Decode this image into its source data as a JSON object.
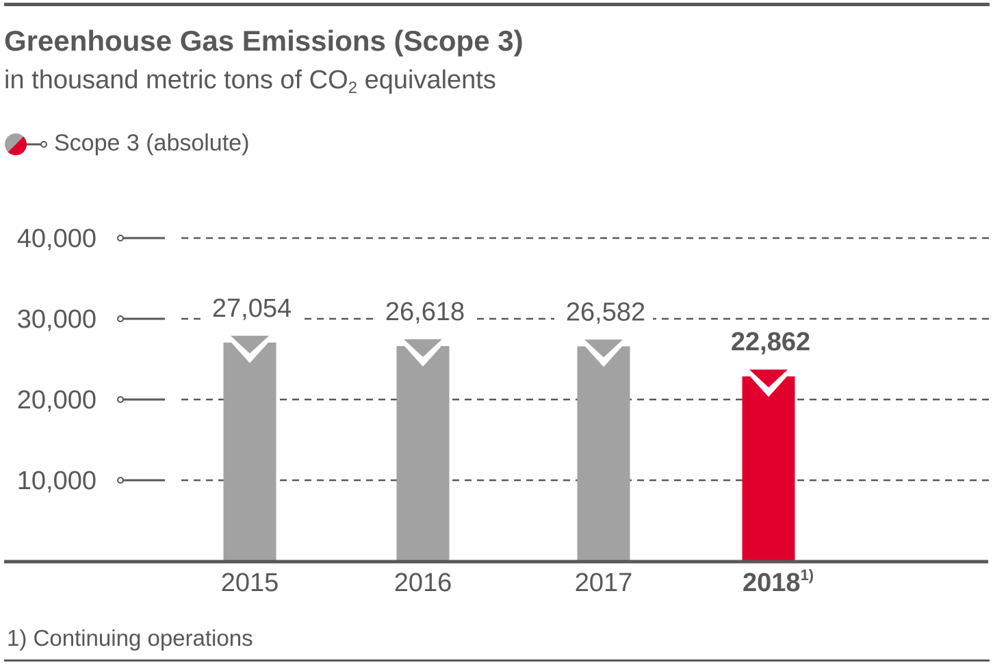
{
  "title": "Greenhouse Gas Emissions (Scope 3)",
  "subtitle_prefix": "in thousand metric tons of CO",
  "subtitle_sub": "2",
  "subtitle_suffix": " equivalents",
  "legend": {
    "label": "Scope 3 (absolute)",
    "icon": "half-gray-half-red-circle-icon"
  },
  "footnote": "1) Continuing operations",
  "colors": {
    "text": "#58585a",
    "bar": "#a2a2a3",
    "highlight": "#e1002d",
    "grid": "#58585a"
  },
  "chart_data": {
    "type": "bar",
    "title": "Greenhouse Gas Emissions (Scope 3)",
    "ylabel": "in thousand metric tons of CO2 equivalents",
    "xlabel": "",
    "categories": [
      "2015",
      "2016",
      "2017",
      "2018"
    ],
    "category_superscripts": [
      "",
      "",
      "",
      "1)"
    ],
    "values": [
      27054,
      26618,
      26582,
      22862
    ],
    "value_labels": [
      "27,054",
      "26,618",
      "26,582",
      "22,862"
    ],
    "highlighted": [
      false,
      false,
      false,
      true
    ],
    "ylim": [
      0,
      40000
    ],
    "yticks": [
      10000,
      20000,
      30000,
      40000
    ],
    "ytick_labels": [
      "10,000",
      "20,000",
      "30,000",
      "40,000"
    ],
    "grid": true,
    "legend": [
      "Scope 3 (absolute)"
    ]
  }
}
